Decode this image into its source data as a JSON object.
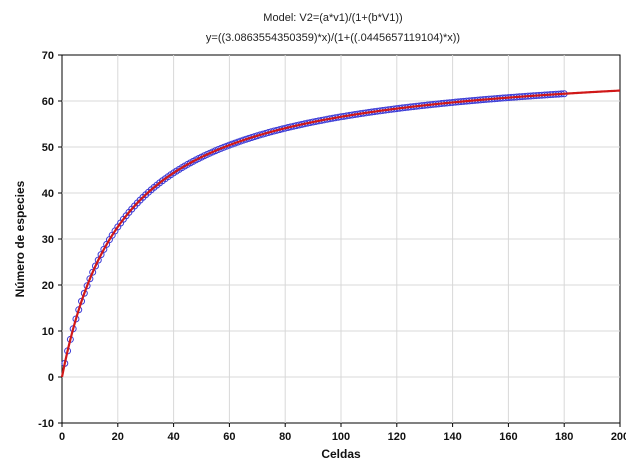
{
  "chart_data": {
    "type": "scatter",
    "title": "Model: V2=(a*v1)/(1+(b*V1))",
    "subtitle": "y=((3.0863554350359)*x)/(1+((.0445657119104)*x))",
    "xlabel": "Celdas",
    "ylabel": "Número de especies",
    "xlim": [
      0,
      200
    ],
    "ylim": [
      -10,
      70
    ],
    "xticks": [
      0,
      20,
      40,
      60,
      80,
      100,
      120,
      140,
      160,
      180,
      200
    ],
    "yticks": [
      -10,
      0,
      10,
      20,
      30,
      40,
      50,
      60,
      70
    ],
    "grid": true,
    "model": {
      "a": 3.0863554350359,
      "b": 0.0445657119104
    },
    "series": [
      {
        "kind": "points",
        "color": "#3a3ad6",
        "x_start": 1,
        "x_end": 180,
        "x_step": 1,
        "y_rule": "a*x/(1+b*x)"
      },
      {
        "kind": "fit-line",
        "color": "#d01818",
        "x_start": 0,
        "x_end": 200,
        "y_rule": "a*x/(1+b*x)"
      }
    ],
    "colors": {
      "points": "#3a3ad6",
      "line": "#d01818",
      "grid": "#d8d8d8",
      "axis": "#000000"
    }
  }
}
